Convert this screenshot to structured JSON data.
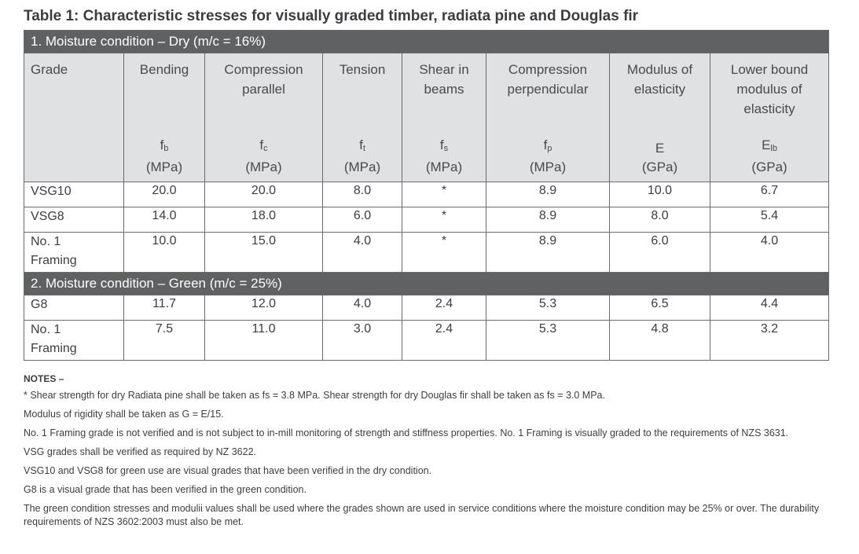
{
  "title": "Table 1: Characteristic stresses for visually graded timber, radiata pine and Douglas fir",
  "sections": {
    "dry": "1. Moisture condition – Dry (m/c = 16%)",
    "green": "2. Moisture condition – Green (m/c = 25%)"
  },
  "columns": [
    {
      "name_line1": "Grade",
      "name_line2": "",
      "name_line3": "",
      "symbol": "",
      "symbol_sub": "",
      "unit": ""
    },
    {
      "name_line1": "Bending",
      "name_line2": "",
      "name_line3": "",
      "symbol": "f",
      "symbol_sub": "b",
      "unit": "(MPa)"
    },
    {
      "name_line1": "Compression",
      "name_line2": "parallel",
      "name_line3": "",
      "symbol": "f",
      "symbol_sub": "c",
      "unit": "(MPa)"
    },
    {
      "name_line1": "Tension",
      "name_line2": "",
      "name_line3": "",
      "symbol": "f",
      "symbol_sub": "t",
      "unit": "(MPa)"
    },
    {
      "name_line1": "Shear in",
      "name_line2": "beams",
      "name_line3": "",
      "symbol": "f",
      "symbol_sub": "s",
      "unit": "(MPa)"
    },
    {
      "name_line1": "Compression",
      "name_line2": "perpendicular",
      "name_line3": "",
      "symbol": "f",
      "symbol_sub": "p",
      "unit": "(MPa)"
    },
    {
      "name_line1": "Modulus of",
      "name_line2": "elasticity",
      "name_line3": "",
      "symbol": "E",
      "symbol_sub": "",
      "unit": "(GPa)"
    },
    {
      "name_line1": "Lower bound",
      "name_line2": "modulus of",
      "name_line3": "elasticity",
      "symbol": "E",
      "symbol_sub": "lb",
      "unit": "(GPa)"
    }
  ],
  "dry_rows": [
    {
      "grade_line1": "VSG10",
      "grade_line2": "",
      "values": [
        "20.0",
        "20.0",
        "8.0",
        "*",
        "8.9",
        "10.0",
        "6.7"
      ]
    },
    {
      "grade_line1": "VSG8",
      "grade_line2": "",
      "values": [
        "14.0",
        "18.0",
        "6.0",
        "*",
        "8.9",
        "8.0",
        "5.4"
      ]
    },
    {
      "grade_line1": "No. 1",
      "grade_line2": "Framing",
      "values": [
        "10.0",
        "15.0",
        "4.0",
        "*",
        "8.9",
        "6.0",
        "4.0"
      ]
    }
  ],
  "green_rows": [
    {
      "grade_line1": "G8",
      "grade_line2": "",
      "values": [
        "11.7",
        "12.0",
        "4.0",
        "2.4",
        "5.3",
        "6.5",
        "4.4"
      ]
    },
    {
      "grade_line1": "No. 1",
      "grade_line2": "Framing",
      "values": [
        "7.5",
        "11.0",
        "3.0",
        "2.4",
        "5.3",
        "4.8",
        "3.2"
      ]
    }
  ],
  "notes": {
    "title": "NOTES –",
    "items": [
      "* Shear strength for dry Radiata pine shall be taken as fs = 3.8 MPa. Shear strength for dry Douglas fir shall be taken as fs = 3.0 MPa.",
      "Modulus of rigidity shall be taken as G = E/15.",
      "No. 1 Framing grade is not verified and is not subject to in-mill monitoring of strength and stiffness properties. No. 1 Framing is visually graded to the requirements of NZS 3631.",
      "VSG grades shall be verified as required by NZ 3622.",
      "VSG10 and VSG8 for green use are visual grades that have been verified in the dry condition.",
      "G8 is a visual grade that has been verified in the green condition.",
      "The green condition stresses and modulii values shall be used where the grades shown are used in service conditions where the moisture condition may be 25% or over. The durability requirements of NZS 3602:2003 must also be met."
    ]
  }
}
